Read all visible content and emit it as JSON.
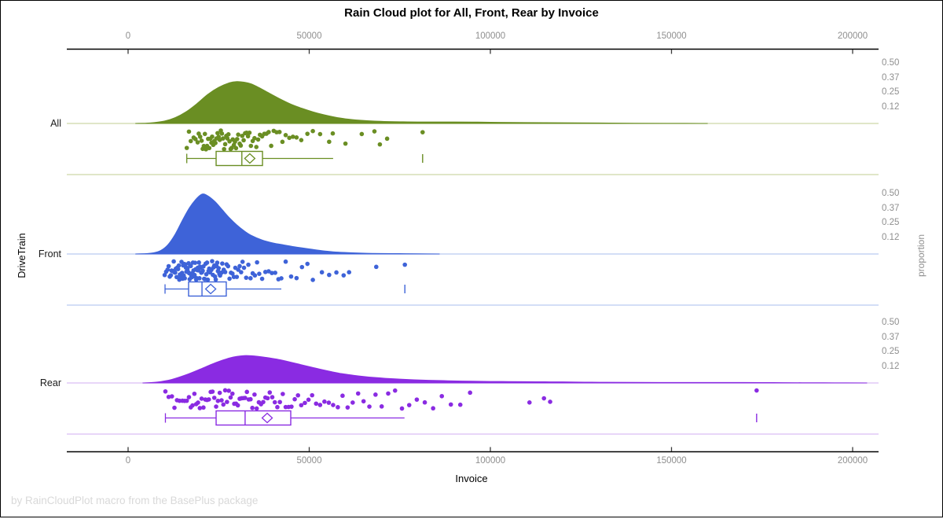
{
  "chart_data": {
    "type": "raincloud",
    "title": "Rain Cloud plot for All, Front, Rear by Invoice",
    "xlabel": "Invoice",
    "ylabel_left": "DriveTrain",
    "ylabel_right": "proportion",
    "footnote": "by RainCloudPlot macro from the BasePlus package",
    "x_axis": {
      "xlim": [
        -17000,
        207000
      ],
      "ticks": [
        0,
        50000,
        100000,
        150000,
        200000
      ],
      "tick_labels": [
        "0",
        "50000",
        "100000",
        "150000",
        "200000"
      ]
    },
    "proportion_ticks": [
      {
        "label": "0.50",
        "value": 0.5
      },
      {
        "label": "0.37",
        "value": 0.375
      },
      {
        "label": "0.25",
        "value": 0.25
      },
      {
        "label": "0.12",
        "value": 0.125
      }
    ],
    "groups": [
      {
        "name": "All",
        "color": "#6a8e23",
        "light_color": "#cdd8a6",
        "density": [
          [
            2000,
            0
          ],
          [
            6000,
            0.004
          ],
          [
            10000,
            0.02
          ],
          [
            13000,
            0.05
          ],
          [
            16000,
            0.1
          ],
          [
            19000,
            0.17
          ],
          [
            22000,
            0.25
          ],
          [
            25000,
            0.31
          ],
          [
            28000,
            0.35
          ],
          [
            30000,
            0.36
          ],
          [
            32000,
            0.355
          ],
          [
            34000,
            0.34
          ],
          [
            36000,
            0.31
          ],
          [
            39000,
            0.26
          ],
          [
            42000,
            0.21
          ],
          [
            45000,
            0.165
          ],
          [
            48000,
            0.13
          ],
          [
            51000,
            0.1
          ],
          [
            54000,
            0.075
          ],
          [
            57000,
            0.055
          ],
          [
            60000,
            0.04
          ],
          [
            64000,
            0.028
          ],
          [
            68000,
            0.02
          ],
          [
            72000,
            0.016
          ],
          [
            76000,
            0.014
          ],
          [
            80000,
            0.013
          ],
          [
            85000,
            0.013
          ],
          [
            90000,
            0.013
          ],
          [
            95000,
            0.012
          ],
          [
            100000,
            0.01
          ],
          [
            110000,
            0.008
          ],
          [
            120000,
            0.006
          ],
          [
            130000,
            0.004
          ],
          [
            140000,
            0.002
          ],
          [
            150000,
            0.001
          ],
          [
            160000,
            0
          ]
        ],
        "box": {
          "whisker_low": 16200,
          "q1": 24300,
          "median": 31400,
          "mean": 33600,
          "q3": 37100,
          "whisker_high": 56600,
          "outlier": 81300
        },
        "points": [
          16200,
          16800,
          17300,
          18100,
          18600,
          19200,
          19500,
          19900,
          20300,
          20600,
          20900,
          21200,
          21500,
          21800,
          22100,
          22400,
          22700,
          23000,
          23200,
          23500,
          23800,
          24100,
          24400,
          24700,
          25000,
          25300,
          25600,
          25900,
          26200,
          26500,
          26800,
          27100,
          27400,
          27700,
          28000,
          28300,
          28600,
          28900,
          29200,
          29500,
          29800,
          30100,
          30400,
          30800,
          31100,
          31500,
          31900,
          32300,
          32700,
          33100,
          33500,
          33900,
          34400,
          34900,
          35400,
          35900,
          36400,
          37000,
          37600,
          38200,
          38800,
          39500,
          40200,
          41000,
          41800,
          42600,
          43500,
          44500,
          45500,
          46500,
          47800,
          49500,
          51000,
          53000,
          55500,
          56500,
          60000,
          64500,
          68000,
          69500,
          71500,
          81300
        ]
      },
      {
        "name": "Front",
        "color": "#3e63d8",
        "light_color": "#b9c9f0",
        "density": [
          [
            2000,
            0
          ],
          [
            5000,
            0.003
          ],
          [
            7000,
            0.01
          ],
          [
            9000,
            0.03
          ],
          [
            11000,
            0.08
          ],
          [
            13000,
            0.17
          ],
          [
            15000,
            0.29
          ],
          [
            17000,
            0.4
          ],
          [
            19000,
            0.48
          ],
          [
            20500,
            0.515
          ],
          [
            22000,
            0.5
          ],
          [
            24000,
            0.45
          ],
          [
            26000,
            0.38
          ],
          [
            28000,
            0.31
          ],
          [
            30000,
            0.25
          ],
          [
            32000,
            0.2
          ],
          [
            34000,
            0.16
          ],
          [
            37000,
            0.12
          ],
          [
            40000,
            0.095
          ],
          [
            43000,
            0.078
          ],
          [
            46000,
            0.062
          ],
          [
            49000,
            0.048
          ],
          [
            52000,
            0.035
          ],
          [
            55000,
            0.024
          ],
          [
            58000,
            0.016
          ],
          [
            62000,
            0.01
          ],
          [
            66000,
            0.006
          ],
          [
            70000,
            0.004
          ],
          [
            75000,
            0.003
          ],
          [
            80000,
            0.002
          ],
          [
            86000,
            0
          ]
        ],
        "box": {
          "whisker_low": 10200,
          "q1": 16700,
          "median": 20400,
          "mean": 22800,
          "q3": 27100,
          "whisker_high": 42300,
          "outlier": 76400
        },
        "points": [
          10100,
          10500,
          10900,
          11200,
          11500,
          11800,
          12000,
          12200,
          12400,
          12600,
          12800,
          13000,
          13200,
          13400,
          13600,
          13800,
          14000,
          14150,
          14300,
          14450,
          14600,
          14750,
          14900,
          15050,
          15200,
          15350,
          15500,
          15650,
          15800,
          15950,
          16100,
          16250,
          16400,
          16550,
          16700,
          16850,
          17000,
          17150,
          17300,
          17450,
          17600,
          17750,
          17900,
          18050,
          18200,
          18350,
          18500,
          18650,
          18800,
          18950,
          19100,
          19250,
          19400,
          19550,
          19700,
          19850,
          20000,
          20200,
          20400,
          20600,
          20800,
          21000,
          21200,
          21400,
          21600,
          21800,
          22000,
          22200,
          22400,
          22600,
          22800,
          23000,
          23200,
          23400,
          23600,
          23800,
          24000,
          24200,
          24400,
          24600,
          24800,
          25000,
          25200,
          25400,
          25600,
          25800,
          26000,
          26400,
          26800,
          27200,
          27600,
          28000,
          28400,
          28800,
          29200,
          29600,
          30000,
          30400,
          30800,
          31200,
          31600,
          32000,
          32600,
          33200,
          33800,
          34400,
          35000,
          35600,
          36200,
          37000,
          37900,
          38800,
          39700,
          40600,
          41500,
          42300,
          43500,
          45000,
          46500,
          48000,
          49500,
          51000,
          53500,
          55500,
          57500,
          59500,
          61000,
          68500,
          76400
        ]
      },
      {
        "name": "Rear",
        "color": "#8a2be2",
        "light_color": "#d9bef3",
        "density": [
          [
            4000,
            0
          ],
          [
            8000,
            0.008
          ],
          [
            12000,
            0.03
          ],
          [
            16000,
            0.07
          ],
          [
            20000,
            0.12
          ],
          [
            23000,
            0.16
          ],
          [
            26000,
            0.195
          ],
          [
            28000,
            0.215
          ],
          [
            30000,
            0.228
          ],
          [
            32000,
            0.235
          ],
          [
            34000,
            0.234
          ],
          [
            36000,
            0.228
          ],
          [
            38000,
            0.22
          ],
          [
            41000,
            0.205
          ],
          [
            44000,
            0.185
          ],
          [
            47000,
            0.163
          ],
          [
            50000,
            0.14
          ],
          [
            53000,
            0.118
          ],
          [
            56000,
            0.098
          ],
          [
            59000,
            0.08
          ],
          [
            62000,
            0.067
          ],
          [
            65000,
            0.056
          ],
          [
            68000,
            0.047
          ],
          [
            71000,
            0.04
          ],
          [
            75000,
            0.033
          ],
          [
            79000,
            0.027
          ],
          [
            83000,
            0.023
          ],
          [
            87000,
            0.02
          ],
          [
            91000,
            0.017
          ],
          [
            95000,
            0.015
          ],
          [
            100000,
            0.013
          ],
          [
            105000,
            0.012
          ],
          [
            110000,
            0.011
          ],
          [
            115000,
            0.01
          ],
          [
            120000,
            0.009
          ],
          [
            126000,
            0.007
          ],
          [
            132000,
            0.006
          ],
          [
            140000,
            0.005
          ],
          [
            150000,
            0.004
          ],
          [
            160000,
            0.004
          ],
          [
            170000,
            0.004
          ],
          [
            178000,
            0.003
          ],
          [
            186000,
            0.002
          ],
          [
            195000,
            0.001
          ],
          [
            204000,
            0
          ]
        ],
        "box": {
          "whisker_low": 10300,
          "q1": 24300,
          "median": 32300,
          "mean": 38400,
          "q3": 44900,
          "whisker_high": 76300,
          "outlier": 173500
        },
        "points": [
          10300,
          11200,
          12100,
          12800,
          13500,
          14200,
          15000,
          15600,
          16200,
          16800,
          17300,
          17800,
          18300,
          18800,
          19300,
          19800,
          20300,
          20800,
          21300,
          21800,
          22300,
          22800,
          23300,
          23800,
          24300,
          24800,
          25300,
          25800,
          26300,
          26800,
          27300,
          27800,
          28300,
          28800,
          29300,
          29800,
          30300,
          30800,
          31300,
          31800,
          32300,
          32800,
          33300,
          33800,
          34300,
          34900,
          35500,
          36100,
          36700,
          37300,
          37900,
          38500,
          39100,
          39800,
          40500,
          41200,
          41900,
          42700,
          43500,
          44300,
          45100,
          46000,
          46900,
          47800,
          48800,
          49800,
          50800,
          51900,
          53000,
          54200,
          55400,
          56600,
          57900,
          59200,
          60600,
          62000,
          63500,
          65000,
          66600,
          68300,
          70000,
          71800,
          73700,
          75600,
          77600,
          79700,
          81900,
          84200,
          86600,
          89100,
          91700,
          94400,
          110800,
          114800,
          116500,
          173500
        ]
      }
    ]
  }
}
